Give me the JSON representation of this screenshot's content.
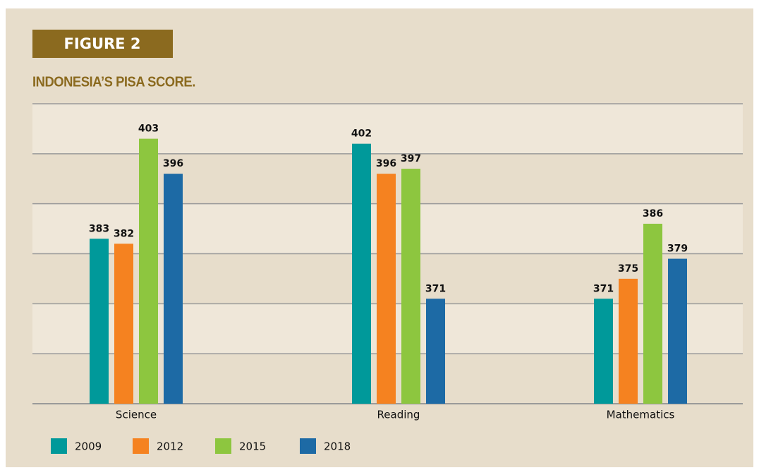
{
  "chart_data": {
    "type": "bar",
    "label": "FIGURE 2",
    "title": "INDONESIA’S PISA SCORE.",
    "categories": [
      "Science",
      "Reading",
      "Mathematics"
    ],
    "series": [
      {
        "name": "2009",
        "color": "#00999a",
        "values": [
          383,
          402,
          371
        ]
      },
      {
        "name": "2012",
        "color": "#f58220",
        "values": [
          382,
          396,
          375
        ]
      },
      {
        "name": "2015",
        "color": "#8dc63f",
        "values": [
          403,
          397,
          386
        ]
      },
      {
        "name": "2018",
        "color": "#1d6aa5",
        "values": [
          396,
          371,
          379
        ]
      }
    ],
    "ylim": [
      350,
      410
    ],
    "yticks": [
      350,
      360,
      370,
      380,
      390,
      400,
      410
    ],
    "grid": true,
    "legend": "bottom-left"
  }
}
